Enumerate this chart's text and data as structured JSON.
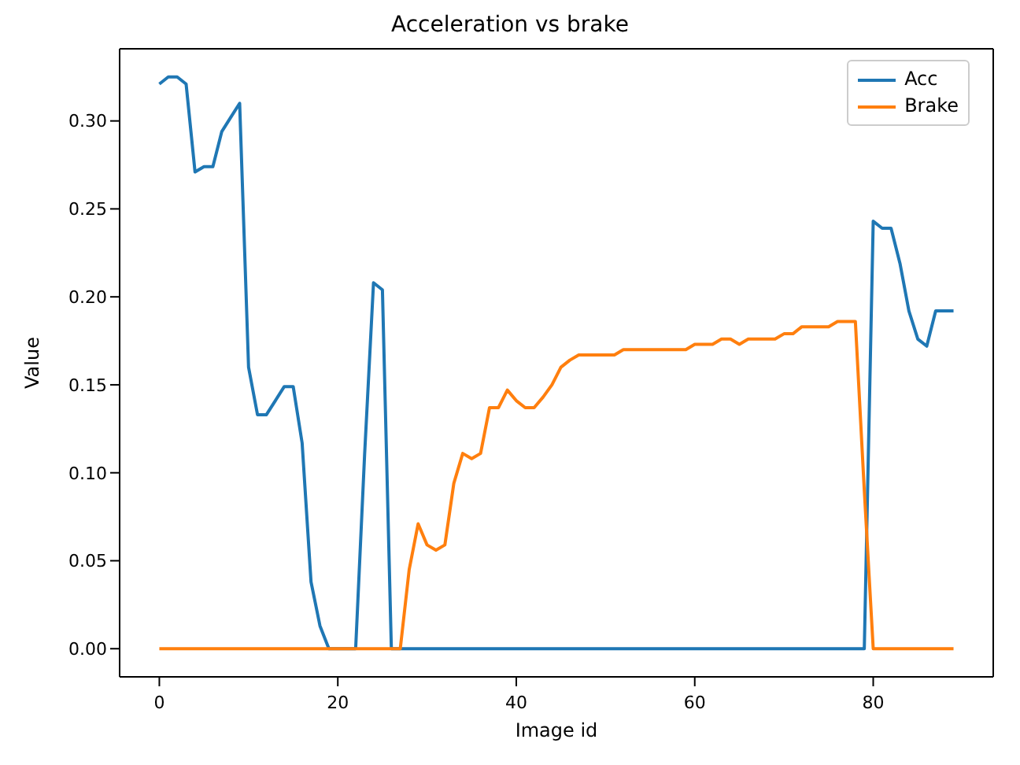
{
  "chart_data": {
    "type": "line",
    "title": "Acceleration vs brake",
    "xlabel": "Image id",
    "ylabel": "Value",
    "x": [
      0,
      1,
      2,
      3,
      4,
      5,
      6,
      7,
      8,
      9,
      10,
      11,
      12,
      13,
      14,
      15,
      16,
      17,
      18,
      19,
      20,
      21,
      22,
      23,
      24,
      25,
      26,
      27,
      28,
      29,
      30,
      31,
      32,
      33,
      34,
      35,
      36,
      37,
      38,
      39,
      40,
      41,
      42,
      43,
      44,
      45,
      46,
      47,
      48,
      49,
      50,
      51,
      52,
      53,
      54,
      55,
      56,
      57,
      58,
      59,
      60,
      61,
      62,
      63,
      64,
      65,
      66,
      67,
      68,
      69,
      70,
      71,
      72,
      73,
      74,
      75,
      76,
      77,
      78,
      79,
      80,
      81,
      82,
      83,
      84,
      85,
      86,
      87,
      88,
      89
    ],
    "series": [
      {
        "name": "Acc",
        "color": "#1f77b4",
        "values": [
          0.321,
          0.325,
          0.325,
          0.321,
          0.271,
          0.274,
          0.274,
          0.294,
          0.302,
          0.31,
          0.16,
          0.133,
          0.133,
          0.141,
          0.149,
          0.149,
          0.117,
          0.038,
          0.013,
          0,
          0,
          0,
          0,
          0.11,
          0.208,
          0.204,
          0,
          0,
          0,
          0,
          0,
          0,
          0,
          0,
          0,
          0,
          0,
          0,
          0,
          0,
          0,
          0,
          0,
          0,
          0,
          0,
          0,
          0,
          0,
          0,
          0,
          0,
          0,
          0,
          0,
          0,
          0,
          0,
          0,
          0,
          0,
          0,
          0,
          0,
          0,
          0,
          0,
          0,
          0,
          0,
          0,
          0,
          0,
          0,
          0,
          0,
          0,
          0,
          0,
          0,
          0.243,
          0.239,
          0.239,
          0.219,
          0.192,
          0.176,
          0.172,
          0.192,
          0.192,
          0.192
        ]
      },
      {
        "name": "Brake",
        "color": "#ff7f0e",
        "values": [
          0,
          0,
          0,
          0,
          0,
          0,
          0,
          0,
          0,
          0,
          0,
          0,
          0,
          0,
          0,
          0,
          0,
          0,
          0,
          0,
          0,
          0,
          0,
          0,
          0,
          0,
          0,
          0,
          0.045,
          0.071,
          0.059,
          0.056,
          0.059,
          0.094,
          0.111,
          0.108,
          0.111,
          0.137,
          0.137,
          0.147,
          0.141,
          0.137,
          0.137,
          0.143,
          0.15,
          0.16,
          0.164,
          0.167,
          0.167,
          0.167,
          0.167,
          0.167,
          0.17,
          0.17,
          0.17,
          0.17,
          0.17,
          0.17,
          0.17,
          0.17,
          0.173,
          0.173,
          0.173,
          0.176,
          0.176,
          0.173,
          0.176,
          0.176,
          0.176,
          0.176,
          0.179,
          0.179,
          0.183,
          0.183,
          0.183,
          0.183,
          0.186,
          0.186,
          0.186,
          0.09,
          0,
          0,
          0,
          0,
          0,
          0,
          0,
          0,
          0,
          0
        ]
      }
    ],
    "xlim": [
      -4.45,
      93.45
    ],
    "xticks": [
      0,
      20,
      40,
      60,
      80
    ],
    "ylim": [
      -0.016,
      0.341
    ],
    "yticks": [
      {
        "value": 0,
        "label": "0.00"
      },
      {
        "value": 0.05,
        "label": "0.05"
      },
      {
        "value": 0.1,
        "label": "0.10"
      },
      {
        "value": 0.15,
        "label": "0.15"
      },
      {
        "value": 0.2,
        "label": "0.20"
      },
      {
        "value": 0.25,
        "label": "0.25"
      },
      {
        "value": 0.3,
        "label": "0.30"
      }
    ],
    "legend": "top right",
    "grid": false,
    "marker": "none",
    "line_style": "solid"
  }
}
